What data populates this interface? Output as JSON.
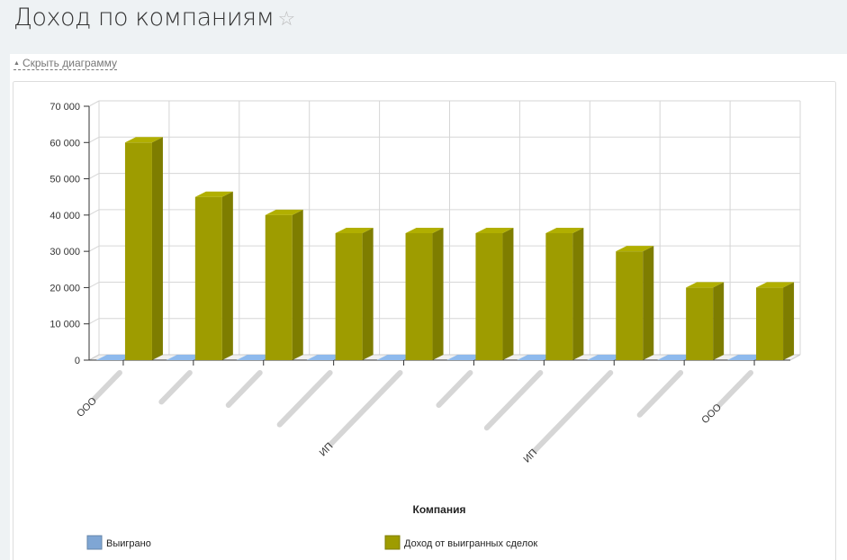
{
  "header": {
    "title": "Доход по компаниям",
    "favorite_icon": "star-icon"
  },
  "toggle": {
    "label": "Скрыть диаграмму",
    "icon": "triangle-up-icon"
  },
  "colors": {
    "won": "#7fa6d4",
    "revenue": "#9e9c00"
  },
  "chart_data": {
    "type": "bar",
    "style": "3d",
    "xlabel": "Компания",
    "ylabel": "",
    "ylim": [
      0,
      70000
    ],
    "yticks": [
      "0",
      "10 000",
      "20 000",
      "30 000",
      "40 000",
      "50 000",
      "60 000",
      "70 000"
    ],
    "categories": [
      "ООО",
      "",
      "",
      "",
      "ИП",
      "",
      "",
      "ИП",
      "",
      "ООО"
    ],
    "series": [
      {
        "name": "Выиграно",
        "values": [
          0,
          0,
          0,
          0,
          0,
          0,
          0,
          0,
          0,
          0
        ]
      },
      {
        "name": "Доход от выигранных сделок",
        "values": [
          60000,
          45000,
          40000,
          35000,
          35000,
          35000,
          35000,
          30000,
          20000,
          20000
        ]
      }
    ],
    "grid": true,
    "legend": "bottom"
  }
}
